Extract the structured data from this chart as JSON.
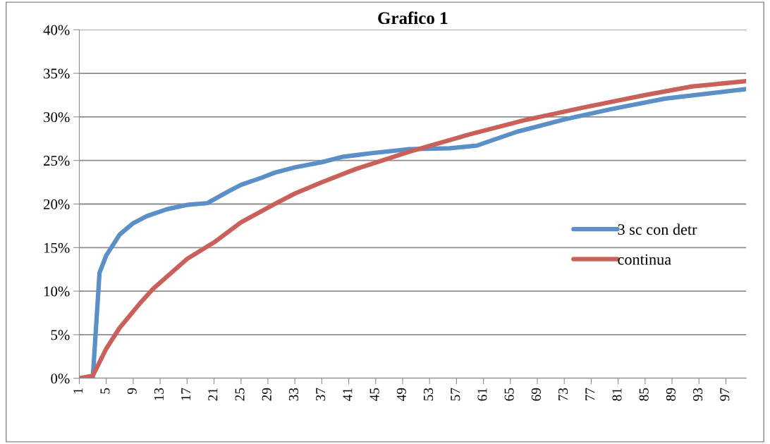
{
  "chart_data": {
    "type": "line",
    "title": "Grafico 1",
    "series": [
      {
        "name": "3 sc con detr",
        "color": "#5b8fc7",
        "x": [
          1,
          3,
          4,
          5,
          7,
          9,
          11,
          14,
          17,
          20,
          23,
          25,
          28,
          30,
          33,
          37,
          40,
          44,
          50,
          56,
          60,
          66,
          73,
          80,
          88,
          100
        ],
        "values": [
          0,
          0,
          12.1,
          14.1,
          16.5,
          17.8,
          18.6,
          19.4,
          19.9,
          20.1,
          21.4,
          22.2,
          23.0,
          23.6,
          24.2,
          24.8,
          25.4,
          25.8,
          26.3,
          26.4,
          26.7,
          28.3,
          29.7,
          30.9,
          32.1,
          33.2
        ]
      },
      {
        "name": "continua",
        "color": "#c9605a",
        "x": [
          1,
          3,
          5,
          7,
          10,
          12,
          17,
          21,
          25,
          30,
          33,
          37,
          42,
          50,
          59,
          67,
          76,
          85,
          92,
          100
        ],
        "values": [
          0,
          0.3,
          3.4,
          5.8,
          8.6,
          10.3,
          13.7,
          15.6,
          17.9,
          20.0,
          21.2,
          22.5,
          24.0,
          26.0,
          28.0,
          29.6,
          31.1,
          32.5,
          33.5,
          34.1
        ]
      }
    ],
    "xlim": [
      1,
      100
    ],
    "xticks": [
      1,
      5,
      9,
      13,
      17,
      21,
      25,
      29,
      33,
      37,
      41,
      45,
      49,
      53,
      57,
      61,
      65,
      69,
      73,
      77,
      81,
      85,
      89,
      93,
      97
    ],
    "ylim": [
      0,
      40
    ],
    "yticks": [
      {
        "value": 0,
        "label": "0%"
      },
      {
        "value": 5,
        "label": "5%"
      },
      {
        "value": 10,
        "label": "10%"
      },
      {
        "value": 15,
        "label": "15%"
      },
      {
        "value": 20,
        "label": "20%"
      },
      {
        "value": 25,
        "label": "25%"
      },
      {
        "value": 30,
        "label": "30%"
      },
      {
        "value": 35,
        "label": "35%"
      },
      {
        "value": 40,
        "label": "40%"
      }
    ],
    "grid": "y",
    "legend": "right",
    "marker": "none",
    "line_style": "solid"
  }
}
